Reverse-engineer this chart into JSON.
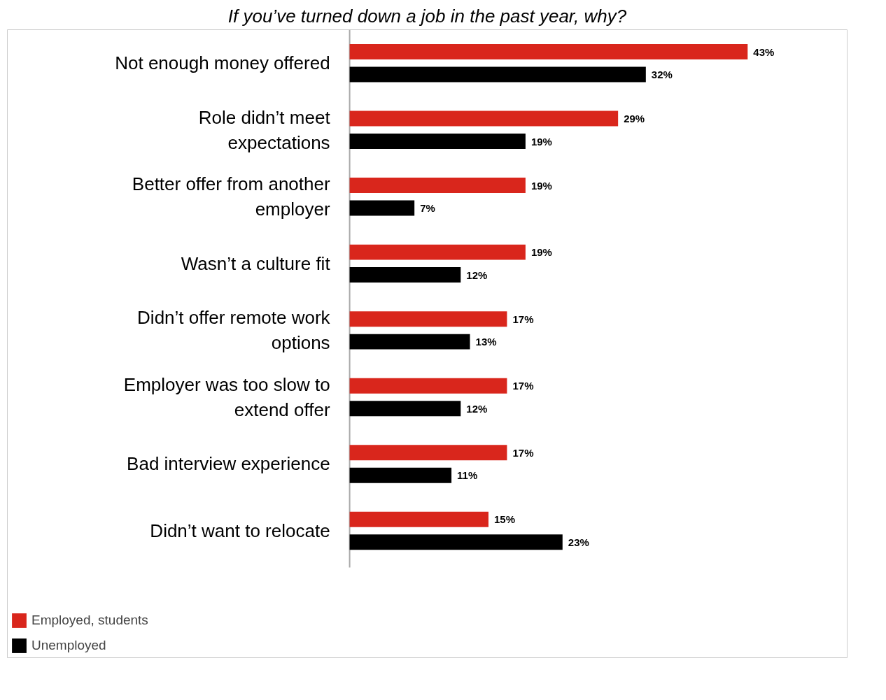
{
  "chart_data": {
    "type": "bar",
    "orientation": "horizontal",
    "title": "If you’ve turned down a job in the past year, why?",
    "categories": [
      "Not enough money offered",
      "Role didn’t meet expectations",
      "Better offer from another employer",
      "Wasn’t a culture fit",
      "Didn’t offer remote work options",
      "Employer was too slow to extend offer",
      "Bad interview experience",
      "Didn’t want to relocate"
    ],
    "series": [
      {
        "name": "Employed, students",
        "color": "#d9261c",
        "values": [
          43,
          29,
          19,
          19,
          17,
          17,
          17,
          15
        ],
        "value_labels": [
          "43%",
          "29%",
          "19%",
          "19%",
          "17%",
          "17%",
          "17%",
          "15%"
        ]
      },
      {
        "name": "Unemployed",
        "color": "#000000",
        "values": [
          32,
          19,
          7,
          12,
          13,
          12,
          11,
          23
        ],
        "value_labels": [
          "32%",
          "19%",
          "7%",
          "12%",
          "13%",
          "12%",
          "11%",
          "23%"
        ]
      }
    ],
    "legend": "bottom left"
  }
}
